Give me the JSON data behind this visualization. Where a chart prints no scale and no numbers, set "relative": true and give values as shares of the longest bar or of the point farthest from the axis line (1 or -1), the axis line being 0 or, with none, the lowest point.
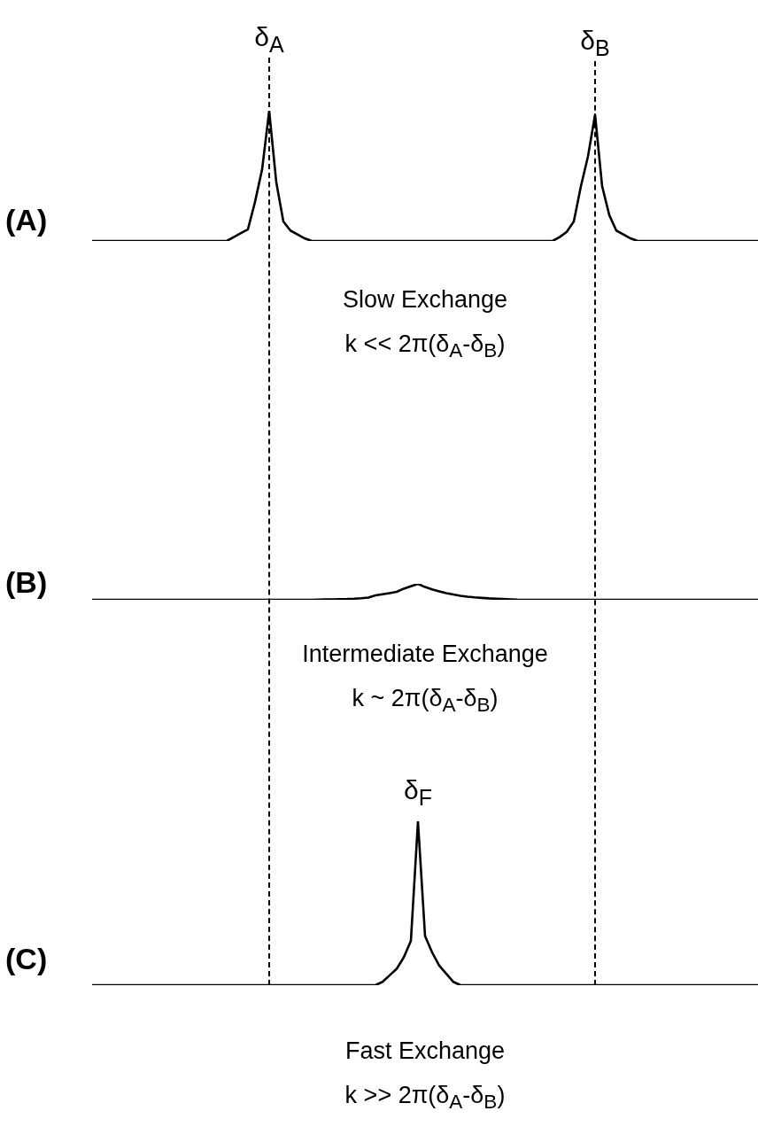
{
  "chart_data": [
    {
      "type": "line",
      "title": "(A)",
      "relative": true,
      "color": "#000000",
      "categories": [
        null,
        null,
        null,
        null,
        null,
        null,
        null,
        null,
        null,
        null,
        null,
        null,
        null,
        null,
        null,
        null,
        null,
        null,
        null,
        null,
        null,
        null,
        null,
        null,
        null,
        null,
        null,
        null,
        null,
        null,
        null,
        null,
        null,
        null,
        null,
        null,
        null,
        null,
        null,
        null,
        null,
        null,
        null,
        null,
        null,
        null,
        null,
        null,
        null,
        null,
        null,
        null,
        null,
        null,
        null,
        null,
        null,
        null,
        null,
        null,
        null,
        null,
        null,
        null,
        null,
        null,
        null,
        null,
        null,
        null,
        null,
        null,
        null,
        null,
        null,
        null,
        null,
        null,
        null,
        null,
        null,
        null,
        null,
        null,
        null,
        null,
        null,
        null,
        null,
        null,
        null,
        null,
        null,
        null,
        null
      ],
      "values": [
        0,
        0,
        0,
        0,
        0,
        0,
        0,
        0,
        0,
        0,
        0,
        0,
        0,
        0,
        0,
        0,
        0,
        0,
        0,
        0,
        0.03,
        0.06,
        0.09,
        0.3,
        0.55,
        1,
        0.45,
        0.15,
        0.08,
        0.05,
        0.02,
        0,
        0,
        0,
        0,
        0,
        0,
        0,
        0,
        0,
        0,
        0,
        0,
        0,
        0,
        0,
        0,
        0,
        0,
        0,
        0,
        0,
        0,
        0,
        0,
        0,
        0,
        0,
        0,
        0,
        0,
        0,
        0,
        0,
        0,
        0,
        0.03,
        0.07,
        0.15,
        0.42,
        0.65,
        0.97,
        0.42,
        0.2,
        0.08,
        0.05,
        0.02,
        0,
        0,
        0,
        0,
        0,
        0,
        0,
        0,
        0,
        0,
        0,
        0,
        0,
        0,
        0,
        0,
        0,
        0
      ],
      "annotations": [
        {
          "text": "δ$_{A}$",
          "y": 1
        },
        {
          "text": "δ$_{B}$",
          "y": 0.97
        },
        "Slow Exchange",
        "k << 2π(δ$_{A}$-δ$_{B}$)"
      ]
    },
    {
      "type": "line",
      "title": "(B)",
      "relative": true,
      "color": "#000000",
      "categories": [
        null,
        null,
        null,
        null,
        null,
        null,
        null,
        null,
        null,
        null,
        null,
        null,
        null,
        null,
        null,
        null,
        null,
        null,
        null,
        null,
        null,
        null,
        null,
        null,
        null,
        null,
        null,
        null,
        null,
        null,
        null,
        null,
        null,
        null,
        null,
        null,
        null,
        null,
        null,
        null,
        null,
        null,
        null,
        null,
        null,
        null,
        null,
        null,
        null,
        null,
        null,
        null,
        null,
        null,
        null,
        null,
        null,
        null,
        null,
        null,
        null,
        null,
        null,
        null,
        null,
        null,
        null,
        null,
        null,
        null,
        null,
        null,
        null,
        null,
        null,
        null,
        null,
        null,
        null,
        null,
        null,
        null,
        null,
        null,
        null,
        null,
        null,
        null,
        null,
        null,
        null,
        null,
        null,
        null,
        null
      ],
      "values": [
        0,
        0,
        0,
        0,
        0,
        0,
        0,
        0,
        0,
        0,
        0,
        0,
        0,
        0,
        0,
        0,
        0,
        0,
        0,
        0,
        0,
        0,
        0,
        0,
        0,
        0,
        0,
        0,
        0,
        0,
        0,
        0,
        0.01,
        0.02,
        0.03,
        0.04,
        0.05,
        0.07,
        0.1,
        0.14,
        0.28,
        0.35,
        0.42,
        0.5,
        0.7,
        0.85,
        1,
        0.8,
        0.65,
        0.53,
        0.42,
        0.33,
        0.25,
        0.19,
        0.15,
        0.12,
        0.09,
        0.07,
        0.05,
        0.03,
        0.01,
        0,
        0,
        0,
        0,
        0,
        0,
        0,
        0,
        0,
        0,
        0,
        0,
        0,
        0,
        0,
        0,
        0,
        0,
        0,
        0,
        0,
        0,
        0,
        0,
        0,
        0,
        0,
        0,
        0,
        0,
        0,
        0,
        0,
        0
      ],
      "annotations": [
        "Intermediate Exchange",
        "k ~ 2π(δ$_{A}$-δ$_{B}$)"
      ]
    },
    {
      "type": "line",
      "title": "(C)",
      "relative": true,
      "color": "#000000",
      "categories": [
        null,
        null,
        null,
        null,
        null,
        null,
        null,
        null,
        null,
        null,
        null,
        null,
        null,
        null,
        null,
        null,
        null,
        null,
        null,
        null,
        null,
        null,
        null,
        null,
        null,
        null,
        null,
        null,
        null,
        null,
        null,
        null,
        null,
        null,
        null,
        null,
        null,
        null,
        null,
        null,
        null,
        null,
        null,
        null,
        null,
        null,
        null,
        null,
        null,
        null,
        null,
        null,
        null,
        null,
        null,
        null,
        null,
        null,
        null,
        null,
        null,
        null,
        null,
        null,
        null,
        null,
        null,
        null,
        null,
        null,
        null,
        null,
        null,
        null,
        null,
        null,
        null,
        null,
        null,
        null,
        null,
        null,
        null,
        null,
        null,
        null,
        null,
        null,
        null,
        null,
        null,
        null,
        null,
        null,
        null
      ],
      "values": [
        0,
        0,
        0,
        0,
        0,
        0,
        0,
        0,
        0,
        0,
        0,
        0,
        0,
        0,
        0,
        0,
        0,
        0,
        0,
        0,
        0,
        0,
        0,
        0,
        0,
        0,
        0,
        0,
        0,
        0,
        0,
        0,
        0,
        0,
        0,
        0,
        0,
        0,
        0,
        0,
        0,
        0.02,
        0.06,
        0.1,
        0.17,
        0.27,
        1,
        0.3,
        0.2,
        0.12,
        0.07,
        0.02,
        0,
        0,
        0,
        0,
        0,
        0,
        0,
        0,
        0,
        0,
        0,
        0,
        0,
        0,
        0,
        0,
        0,
        0,
        0,
        0,
        0,
        0,
        0,
        0,
        0,
        0,
        0,
        0,
        0,
        0,
        0,
        0,
        0,
        0,
        0,
        0,
        0,
        0,
        0,
        0,
        0,
        0,
        0
      ],
      "annotations": [
        {
          "text": "δ$_{F}$",
          "y": 1
        },
        "Fast Exchange",
        "k >> 2π(δ$_{A}$-δ$_{B}$)"
      ]
    }
  ]
}
